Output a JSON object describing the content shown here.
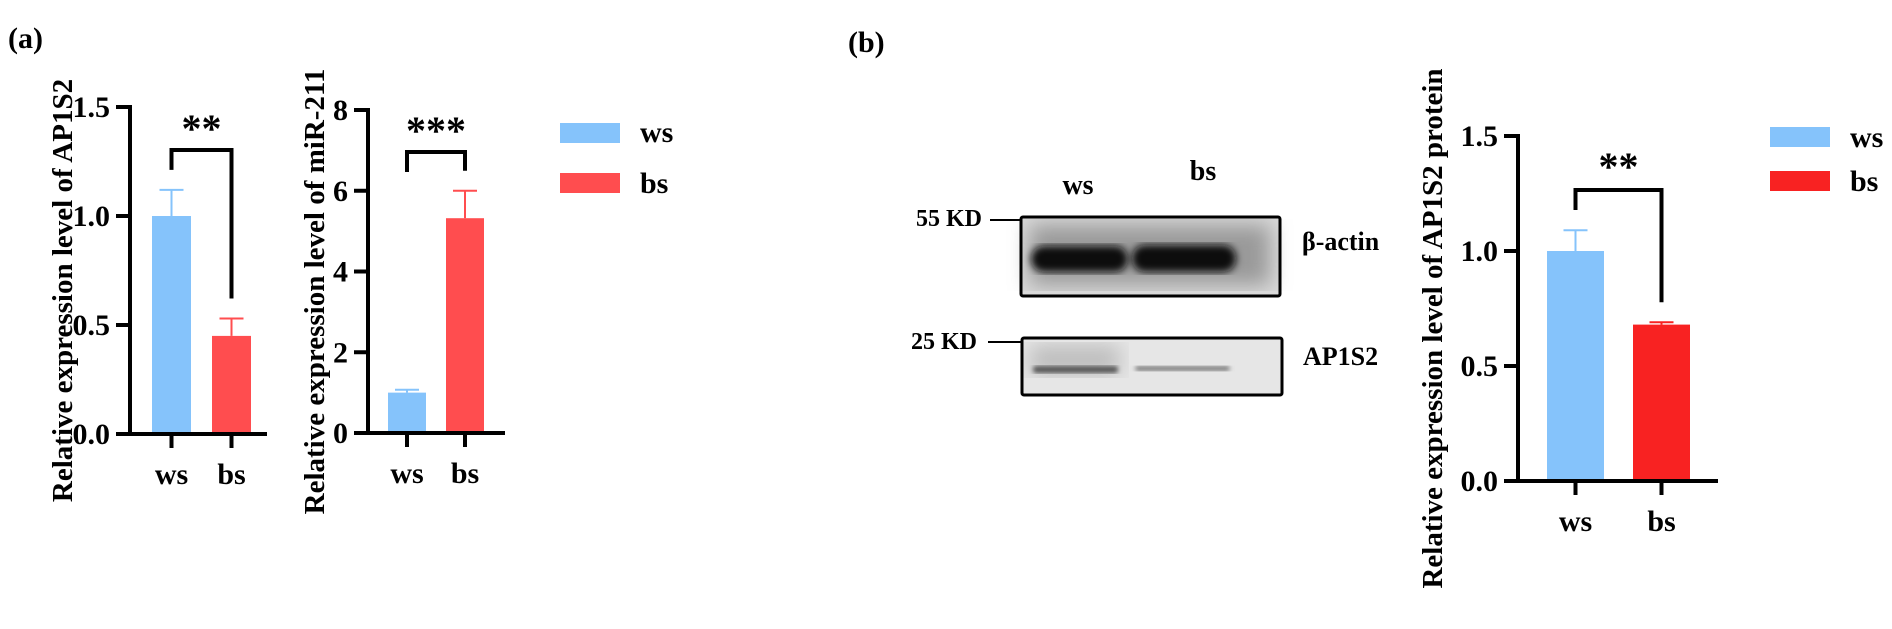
{
  "panel_labels": {
    "a": "(a)",
    "b": "(b)"
  },
  "colors": {
    "ws": "#85C3FB",
    "bs": "#FF4D4F",
    "bs_b": "#F82222"
  },
  "legend": [
    {
      "label": "ws",
      "color": "#85C3FB"
    },
    {
      "label": "bs",
      "color": "#FF4D4F"
    }
  ],
  "legend_b": [
    {
      "label": "ws",
      "color": "#85C3FB"
    },
    {
      "label": "bs",
      "color": "#F82222"
    }
  ],
  "blot": {
    "lanes": [
      "ws",
      "bs"
    ],
    "markers": [
      "55 KD",
      "25 KD"
    ],
    "bands": [
      "β-actin",
      "AP1S2"
    ]
  },
  "chart_data": [
    {
      "type": "bar",
      "title": "",
      "ylabel": "Relative expression level of AP1S2",
      "categories": [
        "ws",
        "bs"
      ],
      "values": [
        1.0,
        0.45
      ],
      "error_upper": [
        1.12,
        0.53
      ],
      "ylim": [
        0,
        1.5
      ],
      "yticks": [
        "0.0",
        "0.5",
        "1.0",
        "1.5"
      ],
      "ytick_values": [
        0,
        0.5,
        1.0,
        1.5
      ],
      "significance": "**"
    },
    {
      "type": "bar",
      "title": "",
      "ylabel": "Relative expression level of miR-211",
      "categories": [
        "ws",
        "bs"
      ],
      "values": [
        1.0,
        5.32
      ],
      "error_upper": [
        1.07,
        6.0
      ],
      "ylim": [
        0,
        8
      ],
      "yticks": [
        "0",
        "2",
        "4",
        "6",
        "8"
      ],
      "ytick_values": [
        0,
        2,
        4,
        6,
        8
      ],
      "significance": "***"
    },
    {
      "type": "bar",
      "title": "",
      "ylabel": "Relative expression level of AP1S2 protein",
      "categories": [
        "ws",
        "bs"
      ],
      "values": [
        1.0,
        0.68
      ],
      "error_upper": [
        1.09,
        0.69
      ],
      "ylim": [
        0,
        1.5
      ],
      "yticks": [
        "0.0",
        "0.5",
        "1.0",
        "1.5"
      ],
      "ytick_values": [
        0,
        0.5,
        1.0,
        1.5
      ],
      "significance": "**"
    }
  ]
}
